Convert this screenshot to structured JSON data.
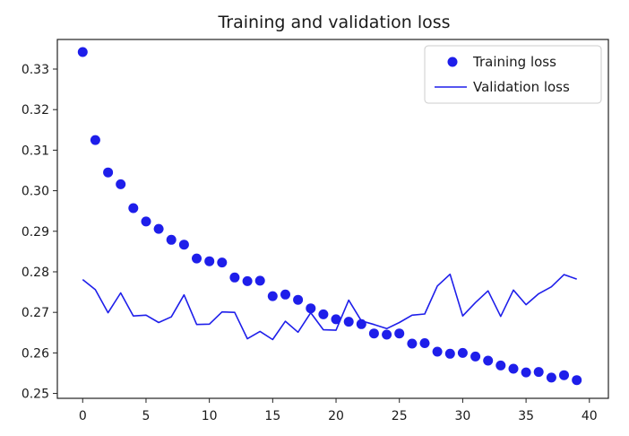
{
  "chart_data": {
    "type": "scatter",
    "title": "Training and validation loss",
    "xlabel": "",
    "ylabel": "",
    "xlim": [
      -2,
      41.5
    ],
    "ylim": [
      0.2488,
      0.3373
    ],
    "grid": false,
    "legend_position": "top-right",
    "x_ticks": [
      "0",
      "5",
      "10",
      "15",
      "20",
      "25",
      "30",
      "35",
      "40"
    ],
    "y_ticks": [
      "0.25",
      "0.26",
      "0.27",
      "0.28",
      "0.29",
      "0.30",
      "0.31",
      "0.32",
      "0.33"
    ],
    "series": [
      {
        "name": "Training loss",
        "style": "markers",
        "color": "#1e1eea",
        "x": [
          0,
          1,
          2,
          3,
          4,
          5,
          6,
          7,
          8,
          9,
          10,
          11,
          12,
          13,
          14,
          15,
          16,
          17,
          18,
          19,
          20,
          21,
          22,
          23,
          24,
          25,
          26,
          27,
          28,
          29,
          30,
          31,
          32,
          33,
          34,
          35,
          36,
          37,
          38,
          39
        ],
        "values": [
          0.3342,
          0.3125,
          0.3045,
          0.3016,
          0.2957,
          0.2924,
          0.2906,
          0.2879,
          0.2867,
          0.2833,
          0.2826,
          0.2823,
          0.2786,
          0.2777,
          0.2778,
          0.274,
          0.2744,
          0.2731,
          0.271,
          0.2695,
          0.2683,
          0.2677,
          0.2671,
          0.2648,
          0.2645,
          0.2648,
          0.2623,
          0.2624,
          0.2603,
          0.2598,
          0.26,
          0.2591,
          0.2581,
          0.2569,
          0.2561,
          0.2552,
          0.2553,
          0.2539,
          0.2545,
          0.2533
        ]
      },
      {
        "name": "Validation loss",
        "style": "line",
        "color": "#1e1eea",
        "x": [
          0,
          1,
          2,
          3,
          4,
          5,
          6,
          7,
          8,
          9,
          10,
          11,
          12,
          13,
          14,
          15,
          16,
          17,
          18,
          19,
          20,
          21,
          22,
          23,
          24,
          25,
          26,
          27,
          28,
          29,
          30,
          31,
          32,
          33,
          34,
          35,
          36,
          37,
          38,
          39
        ],
        "values": [
          0.2781,
          0.2756,
          0.2699,
          0.2748,
          0.2691,
          0.2693,
          0.2675,
          0.2689,
          0.2743,
          0.267,
          0.2671,
          0.2701,
          0.27,
          0.2635,
          0.2653,
          0.2633,
          0.2678,
          0.2651,
          0.2699,
          0.2657,
          0.2656,
          0.273,
          0.2679,
          0.267,
          0.266,
          0.2675,
          0.2693,
          0.2696,
          0.2765,
          0.2794,
          0.2691,
          0.2724,
          0.2753,
          0.269,
          0.2755,
          0.2719,
          0.2746,
          0.2763,
          0.2793,
          0.2782
        ]
      }
    ]
  }
}
